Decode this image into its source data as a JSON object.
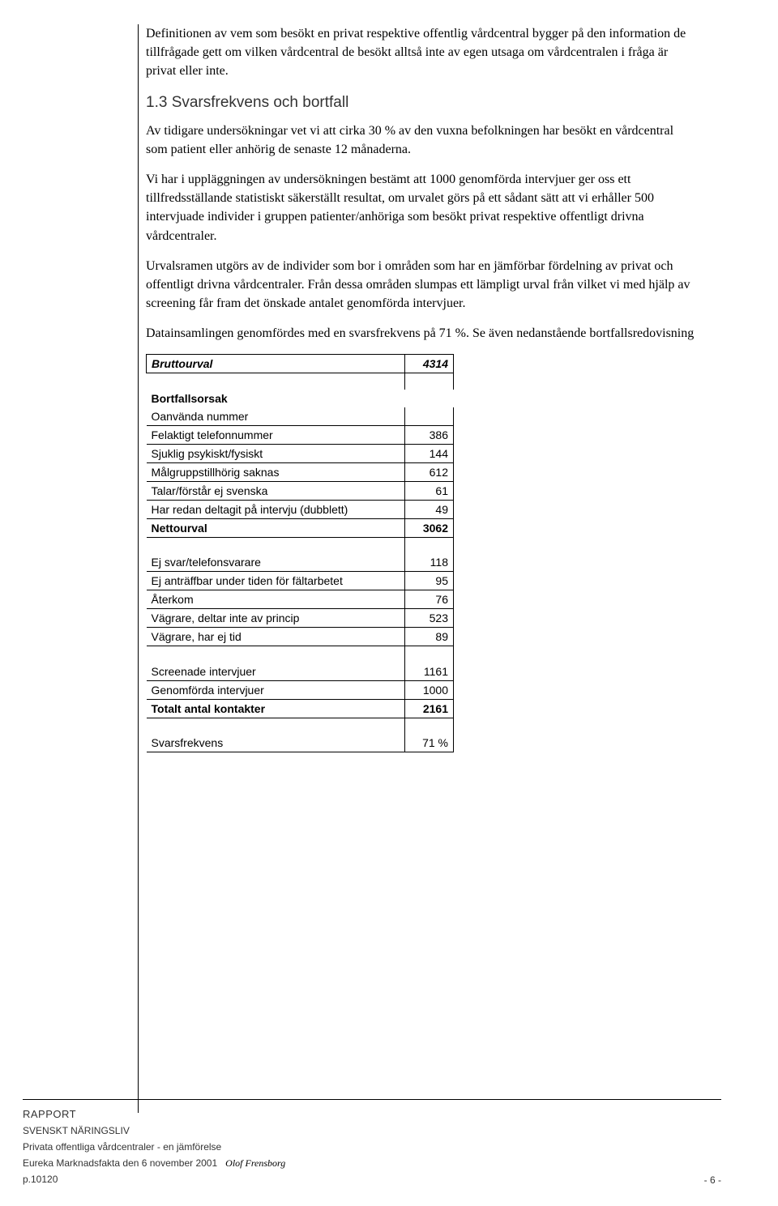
{
  "paragraphs": {
    "p1": "Definitionen av vem som besökt en privat respektive offentlig vårdcentral bygger på den information de tillfrågade gett om vilken vårdcentral de besökt alltså inte av egen utsaga om vårdcentralen i fråga är privat eller inte.",
    "heading": "1.3  Svarsfrekvens och bortfall",
    "p2": "Av tidigare undersökningar vet vi att cirka 30 % av den vuxna befolkningen har besökt en vårdcentral som patient eller anhörig de senaste 12 månaderna.",
    "p3": "Vi har i uppläggningen av undersökningen bestämt att 1000 genomförda intervjuer ger oss ett tillfredsställande statistiskt säkerställt resultat, om urvalet görs på ett sådant sätt att vi erhåller 500 intervjuade individer i gruppen patienter/anhöriga som besökt privat respektive offentligt drivna vårdcentraler.",
    "p4": "Urvalsramen utgörs av de individer som bor i områden som har en jämförbar fördelning av privat och offentligt drivna vårdcentraler. Från dessa områden slumpas ett lämpligt urval från vilket vi med hjälp av screening får fram det önskade antalet genomförda intervjuer.",
    "p5": "Datainsamlingen genomfördes med en svarsfrekvens på 71 %. Se även nedanstående bortfallsredovisning"
  },
  "table": {
    "brutto_label": "Bruttourval",
    "brutto_value": "4314",
    "bortfall_label": "Bortfallsorsak",
    "rows_a": [
      {
        "label": "Oanvända nummer",
        "value": ""
      },
      {
        "label": "Felaktigt telefonnummer",
        "value": "386"
      },
      {
        "label": "Sjuklig psykiskt/fysiskt",
        "value": "144"
      },
      {
        "label": "Målgruppstillhörig saknas",
        "value": "612"
      },
      {
        "label": "Talar/förstår ej svenska",
        "value": "61"
      },
      {
        "label": "Har redan deltagit på intervju (dubblett)",
        "value": "49"
      }
    ],
    "netto_label": "Nettourval",
    "netto_value": "3062",
    "rows_b": [
      {
        "label": "Ej svar/telefonsvarare",
        "value": "118"
      },
      {
        "label": "Ej anträffbar under tiden för fältarbetet",
        "value": "95"
      },
      {
        "label": "Återkom",
        "value": "76"
      },
      {
        "label": "Vägrare, deltar inte av princip",
        "value": "523"
      },
      {
        "label": "Vägrare, har ej tid",
        "value": "89"
      }
    ],
    "rows_c": [
      {
        "label": "Screenade intervjuer",
        "value": "1161"
      },
      {
        "label": "Genomförda intervjuer",
        "value": "1000"
      }
    ],
    "total_label": "Totalt antal kontakter",
    "total_value": "2161",
    "svars_label": "Svarsfrekvens",
    "svars_value": "71 %"
  },
  "footer": {
    "rapport": "RAPPORT",
    "org": "SVENSKT NÄRINGSLIV",
    "title": "Privata offentliga vårdcentraler - en jämförelse",
    "source": "Eureka Marknadsfakta  den 6 november 2001",
    "author": "Olof Frensborg",
    "proj": "p.10120",
    "page": "- 6 -"
  }
}
